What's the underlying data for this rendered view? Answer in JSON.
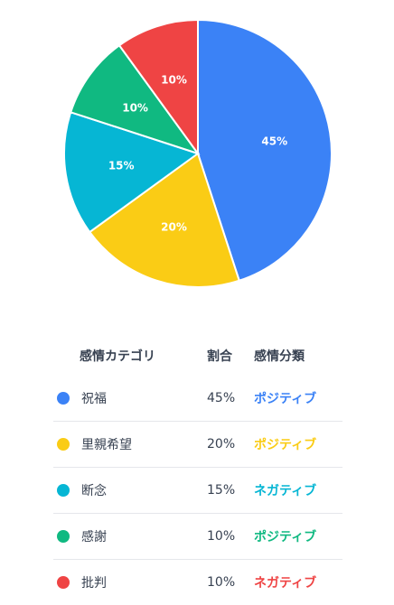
{
  "chart_data": {
    "type": "pie",
    "slices": [
      {
        "label": "祝福",
        "value": 45,
        "value_label": "45%",
        "color": "#3b82f6"
      },
      {
        "label": "里親希望",
        "value": 20,
        "value_label": "20%",
        "color": "#facc15"
      },
      {
        "label": "断念",
        "value": 15,
        "value_label": "15%",
        "color": "#06b6d4"
      },
      {
        "label": "感謝",
        "value": 10,
        "value_label": "10%",
        "color": "#10b981"
      },
      {
        "label": "批判",
        "value": 10,
        "value_label": "10%",
        "color": "#ef4444"
      }
    ]
  },
  "table": {
    "headers": {
      "category": "感情カテゴリ",
      "ratio": "割合",
      "classification": "感情分類"
    },
    "rows": [
      {
        "name": "祝福",
        "ratio": "45%",
        "classification": "ポジティブ",
        "color": "#3b82f6",
        "class_color": "#3b82f6"
      },
      {
        "name": "里親希望",
        "ratio": "20%",
        "classification": "ポジティブ",
        "color": "#facc15",
        "class_color": "#facc15"
      },
      {
        "name": "断念",
        "ratio": "15%",
        "classification": "ネガティブ",
        "color": "#06b6d4",
        "class_color": "#06b6d4"
      },
      {
        "name": "感謝",
        "ratio": "10%",
        "classification": "ポジティブ",
        "color": "#10b981",
        "class_color": "#10b981"
      },
      {
        "name": "批判",
        "ratio": "10%",
        "classification": "ネガティブ",
        "color": "#ef4444",
        "class_color": "#ef4444"
      }
    ]
  }
}
